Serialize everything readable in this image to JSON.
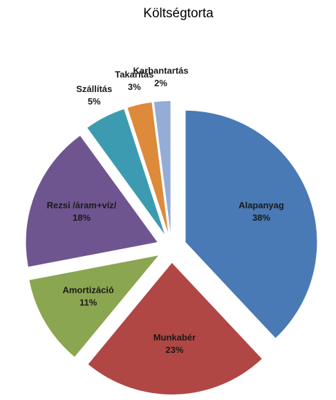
{
  "chart_data": {
    "type": "pie",
    "title": "Költségtorta",
    "categories": [
      "Alapanyag",
      "Munkabér",
      "Amortizáció",
      "Rezsi /áram+víz/",
      "Szállítás",
      "Takarítás",
      "Karbantartás"
    ],
    "values": [
      38,
      23,
      11,
      18,
      5,
      3,
      2
    ],
    "value_labels": [
      "38%",
      "23%",
      "11%",
      "18%",
      "5%",
      "3%",
      "2%"
    ],
    "colors": [
      "#4a7ab5",
      "#b04745",
      "#8ba650",
      "#6f558f",
      "#3c9bb0",
      "#dd8a3a",
      "#94acd6"
    ]
  }
}
